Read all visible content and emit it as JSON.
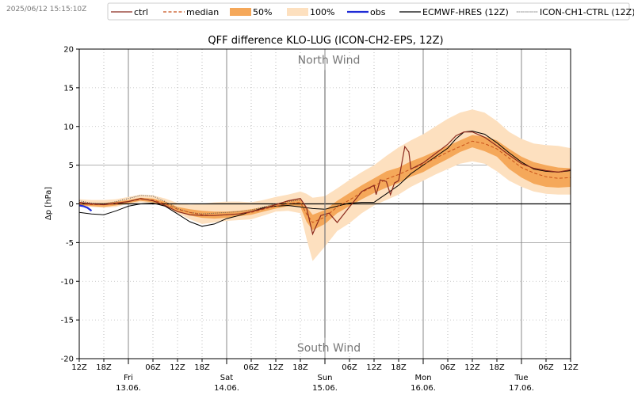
{
  "timestamp": "2025/06/12 15:15:10Z",
  "chart_data": {
    "type": "line",
    "title": "QFF difference KLO-LUG (ICON-CH2-EPS, 12Z)",
    "ylabel": "Δp [hPa]",
    "ylim": [
      -20,
      20
    ],
    "yticks": [
      -20,
      -15,
      -10,
      -5,
      0,
      5,
      10,
      15,
      20
    ],
    "xlim": [
      0,
      120
    ],
    "x_unit": "hours since 2025-06-12 12Z",
    "annotation_top": "North Wind",
    "annotation_bottom": "South Wind",
    "annotation_x": 60,
    "x_ticks": [
      {
        "x": 0,
        "label": "12Z"
      },
      {
        "x": 6,
        "label": "18Z"
      },
      {
        "x": 18,
        "label": "06Z"
      },
      {
        "x": 24,
        "label": "12Z"
      },
      {
        "x": 30,
        "label": "18Z"
      },
      {
        "x": 42,
        "label": "06Z"
      },
      {
        "x": 48,
        "label": "12Z"
      },
      {
        "x": 54,
        "label": "18Z"
      },
      {
        "x": 66,
        "label": "06Z"
      },
      {
        "x": 72,
        "label": "12Z"
      },
      {
        "x": 78,
        "label": "18Z"
      },
      {
        "x": 90,
        "label": "06Z"
      },
      {
        "x": 96,
        "label": "12Z"
      },
      {
        "x": 102,
        "label": "18Z"
      },
      {
        "x": 114,
        "label": "06Z"
      },
      {
        "x": 120,
        "label": "12Z"
      }
    ],
    "day_ticks": [
      {
        "x": 12,
        "day": "Fri",
        "date": "13.06."
      },
      {
        "x": 36,
        "day": "Sat",
        "date": "14.06."
      },
      {
        "x": 60,
        "day": "Sun",
        "date": "15.06."
      },
      {
        "x": 84,
        "day": "Mon",
        "date": "16.06."
      },
      {
        "x": 108,
        "day": "Tue",
        "date": "17.06."
      }
    ],
    "legend": [
      {
        "label": "ctrl",
        "style": "ctrl"
      },
      {
        "label": "median",
        "style": "median"
      },
      {
        "label": "50%",
        "style": "p50"
      },
      {
        "label": "100%",
        "style": "p100"
      },
      {
        "label": "obs",
        "style": "obs"
      },
      {
        "label": "ECMWF-HRES (12Z)",
        "style": "ecmwf"
      },
      {
        "label": "ICON-CH1-CTRL (12Z)",
        "style": "icon"
      }
    ],
    "colors": {
      "ctrl": "#8b2a1e",
      "median": "#c8521a",
      "p50": "#f5a85a",
      "p100": "#fde0bf",
      "obs": "#1f2bd6",
      "ecmwf": "#000000",
      "icon": "#555555",
      "grid": "#aaaaaa",
      "dayline": "#888888"
    },
    "series": {
      "range100": {
        "x": [
          0,
          3,
          6,
          9,
          12,
          15,
          18,
          21,
          24,
          27,
          30,
          33,
          36,
          39,
          42,
          45,
          48,
          51,
          54,
          55.5,
          57,
          60,
          63,
          66,
          69,
          72,
          75,
          78,
          81,
          84,
          87,
          90,
          93,
          96,
          99,
          102,
          105,
          108,
          111,
          114,
          117,
          120
        ],
        "upper": [
          0.6,
          0.5,
          0.5,
          0.6,
          0.9,
          1.2,
          1.1,
          0.7,
          0.1,
          -0.1,
          0.0,
          0.2,
          0.3,
          0.3,
          0.2,
          0.5,
          0.9,
          1.2,
          1.6,
          1.3,
          0.8,
          1.0,
          2.0,
          3.1,
          4.1,
          5.0,
          6.2,
          7.3,
          8.2,
          9.0,
          10.0,
          11.0,
          11.8,
          12.2,
          11.8,
          10.7,
          9.3,
          8.4,
          7.8,
          7.6,
          7.5,
          7.2
        ],
        "lower": [
          -0.2,
          -0.4,
          -0.5,
          -0.4,
          0.0,
          0.2,
          0.1,
          -0.4,
          -1.2,
          -2.0,
          -2.6,
          -2.4,
          -2.2,
          -2.1,
          -2.0,
          -1.5,
          -1.0,
          -0.9,
          -1.2,
          -4.5,
          -7.4,
          -5.5,
          -3.5,
          -2.5,
          -1.2,
          -0.2,
          0.5,
          1.2,
          2.2,
          3.0,
          3.8,
          4.5,
          5.2,
          5.5,
          5.2,
          4.2,
          3.0,
          2.2,
          1.6,
          1.3,
          1.2,
          1.2
        ]
      },
      "range50": {
        "x": [
          0,
          3,
          6,
          9,
          12,
          15,
          18,
          21,
          24,
          27,
          30,
          33,
          36,
          39,
          42,
          45,
          48,
          51,
          54,
          55.5,
          57,
          60,
          63,
          66,
          69,
          72,
          75,
          78,
          81,
          84,
          87,
          90,
          93,
          96,
          99,
          102,
          105,
          108,
          111,
          114,
          117,
          120
        ],
        "upper": [
          0.2,
          0.1,
          0.1,
          0.3,
          0.5,
          0.8,
          0.7,
          0.3,
          -0.4,
          -0.7,
          -0.9,
          -1.0,
          -1.0,
          -0.9,
          -0.7,
          -0.4,
          0.0,
          0.4,
          0.6,
          -0.4,
          -1.4,
          -0.8,
          0.4,
          1.4,
          2.4,
          3.3,
          4.2,
          4.7,
          5.5,
          6.1,
          6.8,
          7.5,
          8.2,
          8.9,
          8.7,
          8.2,
          7.1,
          6.1,
          5.4,
          5.0,
          4.7,
          4.6
        ],
        "lower": [
          -0.2,
          -0.3,
          -0.4,
          -0.2,
          0.1,
          0.4,
          0.2,
          -0.3,
          -1.0,
          -1.5,
          -1.8,
          -1.9,
          -1.8,
          -1.6,
          -1.4,
          -1.0,
          -0.6,
          -0.3,
          -0.4,
          -2.3,
          -3.4,
          -2.6,
          -1.2,
          -0.3,
          0.6,
          1.4,
          2.1,
          2.7,
          3.5,
          4.1,
          5.0,
          5.8,
          6.7,
          7.3,
          6.8,
          6.1,
          4.5,
          3.4,
          2.6,
          2.2,
          2.1,
          2.2
        ]
      },
      "median": {
        "x": [
          0,
          3,
          6,
          9,
          12,
          15,
          18,
          21,
          24,
          27,
          30,
          33,
          36,
          39,
          42,
          45,
          48,
          51,
          54,
          55.5,
          57,
          60,
          63,
          66,
          69,
          72,
          75,
          78,
          81,
          84,
          87,
          90,
          93,
          96,
          99,
          102,
          105,
          108,
          111,
          114,
          117,
          120
        ],
        "y": [
          0.0,
          -0.1,
          -0.1,
          0.0,
          0.3,
          0.6,
          0.5,
          0.0,
          -0.7,
          -1.1,
          -1.4,
          -1.5,
          -1.4,
          -1.3,
          -1.1,
          -0.7,
          -0.3,
          0.0,
          0.2,
          -1.3,
          -2.4,
          -1.7,
          -0.4,
          0.5,
          1.5,
          2.3,
          3.2,
          3.8,
          4.5,
          5.1,
          5.9,
          6.7,
          7.4,
          8.1,
          7.8,
          7.1,
          5.9,
          4.7,
          4.0,
          3.5,
          3.3,
          3.4
        ]
      },
      "ctrl": {
        "x": [
          0,
          3,
          6,
          9,
          12,
          15,
          18,
          21,
          24,
          27,
          30,
          33,
          36,
          39,
          42,
          45,
          48,
          51,
          54,
          55.5,
          57,
          59,
          61,
          63,
          66,
          69,
          72,
          72.5,
          73.5,
          75,
          76,
          77,
          78,
          79.5,
          80.5,
          81,
          84,
          87,
          90,
          92,
          94,
          96,
          99,
          102,
          105,
          108,
          111,
          114,
          117,
          120
        ],
        "y": [
          0.2,
          0.0,
          -0.1,
          0.1,
          0.3,
          0.7,
          0.4,
          -0.2,
          -1.0,
          -1.4,
          -1.5,
          -1.5,
          -1.4,
          -1.3,
          -1.0,
          -0.6,
          -0.1,
          0.4,
          0.7,
          -0.5,
          -3.9,
          -1.5,
          -1.2,
          -2.4,
          -0.4,
          1.6,
          2.4,
          1.2,
          3.1,
          2.9,
          1.2,
          2.7,
          3.0,
          7.4,
          6.7,
          4.5,
          5.3,
          6.5,
          7.7,
          8.8,
          9.3,
          9.3,
          8.6,
          7.5,
          6.3,
          5.2,
          4.6,
          4.3,
          4.1,
          4.4
        ]
      },
      "ecmwf": {
        "x": [
          0,
          3,
          6,
          9,
          12,
          15,
          18,
          21,
          24,
          27,
          30,
          33,
          36,
          39,
          42,
          45,
          48,
          51,
          54,
          57,
          60,
          63,
          66,
          69,
          72,
          75,
          78,
          81,
          84,
          87,
          90,
          92,
          94,
          96,
          99,
          102,
          105,
          108,
          111,
          114,
          117,
          120
        ],
        "y": [
          -1.1,
          -1.3,
          -1.4,
          -0.9,
          -0.3,
          0.0,
          0.1,
          -0.3,
          -1.3,
          -2.3,
          -2.9,
          -2.6,
          -1.9,
          -1.5,
          -1.0,
          -0.5,
          -0.3,
          -0.2,
          -0.4,
          -0.6,
          -0.7,
          -0.3,
          0.1,
          0.2,
          0.2,
          1.3,
          2.4,
          3.9,
          5.0,
          6.1,
          7.2,
          8.4,
          9.3,
          9.4,
          9.0,
          7.9,
          6.6,
          5.4,
          4.5,
          4.2,
          4.1,
          4.3
        ]
      },
      "icon": {
        "x": [
          0,
          3,
          6,
          9,
          12,
          15,
          18,
          21,
          24,
          27,
          30,
          33,
          36,
          39,
          42,
          45,
          48,
          51,
          54
        ],
        "y": [
          0.4,
          0.1,
          0.0,
          0.3,
          0.7,
          1.1,
          1.0,
          0.3,
          -0.6,
          -1.1,
          -1.3,
          -1.2,
          -1.1,
          -1.0,
          -0.8,
          -0.4,
          0.0,
          0.3,
          0.5
        ]
      },
      "obs": {
        "x": [
          0,
          1,
          2,
          3
        ],
        "y": [
          -0.2,
          -0.3,
          -0.5,
          -0.9
        ]
      }
    }
  }
}
